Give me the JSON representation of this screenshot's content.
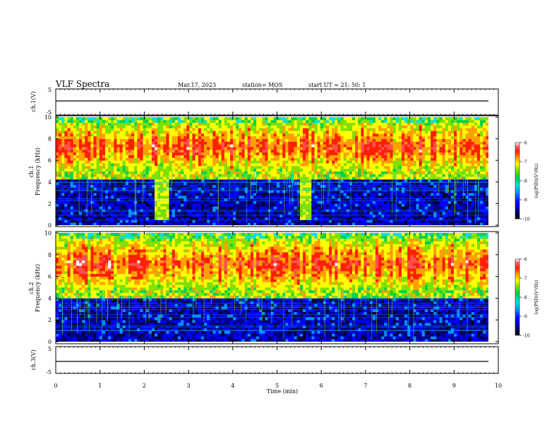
{
  "header": {
    "title": "VLF Spectra",
    "date": "Mar.17, 2023",
    "station": "station= MOS",
    "start": "start  UT =   21: 50: 1"
  },
  "colors": {
    "colormap": [
      "#000033",
      "#000088",
      "#0000ff",
      "#0090ff",
      "#00e0e0",
      "#00d050",
      "#80e000",
      "#ffff00",
      "#ffa000",
      "#ff2000",
      "#ff5050",
      "#ffffff"
    ]
  },
  "chart_data": [
    {
      "type": "line",
      "panel": "ch1-voltage",
      "ylabel": "ch.1(V)",
      "yticks": [
        "5",
        "-5"
      ],
      "ylim": [
        -5,
        5
      ],
      "x": [
        0,
        10
      ],
      "values": [
        0,
        0
      ]
    },
    {
      "type": "heatmap",
      "panel": "ch1-spectrogram",
      "ylabel": [
        "ch.1",
        "Frequency (kHz)"
      ],
      "yticks": [
        "0",
        "2",
        "4",
        "6",
        "8",
        "10"
      ],
      "ylim": [
        0,
        10
      ],
      "xlim": [
        0,
        9.85
      ],
      "colorbar": {
        "label": "log(PSD)(V²/Hz)",
        "ticks": [
          "-6",
          "-7",
          "-8",
          "-9",
          "-10"
        ],
        "range": [
          -10,
          -6
        ]
      },
      "features": {
        "intense_band_khz": [
          5,
          9.5
        ],
        "quiet_below_khz": 4.2,
        "broadband_bursts_min": [
          [
            2.25,
            2.55
          ],
          [
            5.5,
            5.8
          ]
        ]
      }
    },
    {
      "type": "heatmap",
      "panel": "ch2-spectrogram",
      "ylabel": [
        "ch.2",
        "Frequency (kHz)"
      ],
      "yticks": [
        "0",
        "2",
        "4",
        "6",
        "8",
        "10"
      ],
      "ylim": [
        0,
        10
      ],
      "xlim": [
        0,
        9.85
      ],
      "colorbar": {
        "label": "log(PSD)(V²/Hz)",
        "ticks": [
          "-6",
          "-7",
          "-8",
          "-9",
          "-10"
        ],
        "range": [
          -10,
          -6
        ]
      },
      "features": {
        "intense_band_khz": [
          4.8,
          9.5
        ],
        "quiet_below_khz": 4.0
      }
    },
    {
      "type": "line",
      "panel": "ch3-voltage",
      "ylabel": "ch.3(V)",
      "yticks": [
        "5",
        "-5"
      ],
      "ylim": [
        -5,
        5
      ],
      "x": [
        0,
        10
      ],
      "values": [
        0,
        0
      ],
      "xlabel": "Time  (min)",
      "xticks": [
        "0",
        "1",
        "2",
        "3",
        "4",
        "5",
        "6",
        "7",
        "8",
        "9",
        "10"
      ],
      "xlim": [
        0,
        10
      ]
    }
  ]
}
